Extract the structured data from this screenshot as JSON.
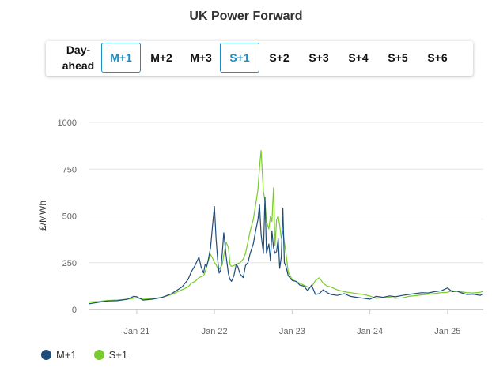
{
  "title": "UK Power Forward",
  "tabs": [
    {
      "label": "Day-ahead",
      "active": false
    },
    {
      "label": "M+1",
      "active": true
    },
    {
      "label": "M+2",
      "active": false
    },
    {
      "label": "M+3",
      "active": false
    },
    {
      "label": "S+1",
      "active": true
    },
    {
      "label": "S+2",
      "active": false
    },
    {
      "label": "S+3",
      "active": false
    },
    {
      "label": "S+4",
      "active": false
    },
    {
      "label": "S+5",
      "active": false
    },
    {
      "label": "S+6",
      "active": false
    }
  ],
  "colors": {
    "accent": "#1a8fc4",
    "m1": "#1e4d7b",
    "s1": "#77cc29",
    "grid": "#e6e6e6"
  },
  "chart_data": {
    "type": "line",
    "title": "UK Power Forward",
    "ylabel": "£/MWh",
    "xlabel": "",
    "ylim": [
      0,
      1000
    ],
    "yticks": [
      0,
      250,
      500,
      750,
      1000
    ],
    "xticks": [
      {
        "label": "Jan 21",
        "x": 2021.0
      },
      {
        "label": "Jan 22",
        "x": 2022.0
      },
      {
        "label": "Jan 23",
        "x": 2023.0
      },
      {
        "label": "Jan 24",
        "x": 2024.0
      },
      {
        "label": "Jan 25",
        "x": 2025.0
      }
    ],
    "xlim": [
      2020.38,
      2025.46
    ],
    "grid": true,
    "legend": "bottom-left",
    "series": [
      {
        "name": "M+1",
        "color": "#1e4d7b",
        "x": [
          2020.38,
          2020.5,
          2020.62,
          2020.75,
          2020.88,
          2020.96,
          2021.0,
          2021.08,
          2021.2,
          2021.33,
          2021.45,
          2021.58,
          2021.66,
          2021.7,
          2021.75,
          2021.8,
          2021.83,
          2021.86,
          2021.88,
          2021.9,
          2021.92,
          2021.95,
          2021.98,
          2022.0,
          2022.02,
          2022.04,
          2022.06,
          2022.08,
          2022.1,
          2022.12,
          2022.15,
          2022.18,
          2022.2,
          2022.22,
          2022.25,
          2022.28,
          2022.3,
          2022.33,
          2022.37,
          2022.4,
          2022.43,
          2022.46,
          2022.5,
          2022.53,
          2022.56,
          2022.58,
          2022.6,
          2022.63,
          2022.65,
          2022.67,
          2022.7,
          2022.72,
          2022.74,
          2022.76,
          2022.78,
          2022.8,
          2022.82,
          2022.84,
          2022.86,
          2022.88,
          2022.9,
          2022.92,
          2022.95,
          2023.0,
          2023.05,
          2023.1,
          2023.15,
          2023.2,
          2023.25,
          2023.3,
          2023.35,
          2023.4,
          2023.45,
          2023.5,
          2023.58,
          2023.67,
          2023.75,
          2023.83,
          2023.92,
          2024.0,
          2024.08,
          2024.17,
          2024.25,
          2024.33,
          2024.42,
          2024.5,
          2024.58,
          2024.67,
          2024.75,
          2024.83,
          2024.92,
          2025.0,
          2025.06,
          2025.12,
          2025.17,
          2025.25,
          2025.33,
          2025.42,
          2025.46
        ],
        "values": [
          30,
          38,
          45,
          47,
          55,
          70,
          68,
          50,
          55,
          65,
          85,
          120,
          160,
          200,
          235,
          280,
          225,
          195,
          240,
          230,
          265,
          330,
          470,
          550,
          385,
          270,
          195,
          210,
          300,
          410,
          285,
          190,
          160,
          150,
          180,
          240,
          230,
          190,
          170,
          235,
          250,
          300,
          350,
          420,
          480,
          560,
          400,
          300,
          600,
          300,
          350,
          260,
          420,
          330,
          300,
          310,
          380,
          220,
          280,
          540,
          250,
          230,
          180,
          155,
          150,
          130,
          125,
          100,
          130,
          80,
          85,
          105,
          90,
          80,
          75,
          85,
          70,
          65,
          60,
          55,
          70,
          65,
          72,
          68,
          75,
          80,
          85,
          90,
          88,
          95,
          100,
          115,
          95,
          98,
          90,
          80,
          82,
          75,
          85
        ]
      },
      {
        "name": "S+1",
        "color": "#77cc29",
        "x": [
          2020.38,
          2020.5,
          2020.62,
          2020.75,
          2020.88,
          2020.96,
          2021.0,
          2021.08,
          2021.2,
          2021.33,
          2021.45,
          2021.58,
          2021.66,
          2021.7,
          2021.75,
          2021.8,
          2021.83,
          2021.86,
          2021.88,
          2021.9,
          2021.92,
          2021.95,
          2021.98,
          2022.0,
          2022.02,
          2022.04,
          2022.06,
          2022.08,
          2022.1,
          2022.12,
          2022.15,
          2022.18,
          2022.2,
          2022.22,
          2022.25,
          2022.28,
          2022.3,
          2022.33,
          2022.37,
          2022.4,
          2022.43,
          2022.46,
          2022.5,
          2022.53,
          2022.56,
          2022.58,
          2022.6,
          2022.63,
          2022.65,
          2022.67,
          2022.7,
          2022.72,
          2022.74,
          2022.76,
          2022.78,
          2022.8,
          2022.82,
          2022.84,
          2022.86,
          2022.88,
          2022.9,
          2022.92,
          2022.95,
          2023.0,
          2023.05,
          2023.1,
          2023.15,
          2023.2,
          2023.25,
          2023.3,
          2023.35,
          2023.4,
          2023.45,
          2023.5,
          2023.58,
          2023.67,
          2023.75,
          2023.83,
          2023.92,
          2024.0,
          2024.08,
          2024.17,
          2024.25,
          2024.33,
          2024.42,
          2024.5,
          2024.58,
          2024.67,
          2024.75,
          2024.83,
          2024.92,
          2025.0,
          2025.06,
          2025.12,
          2025.17,
          2025.25,
          2025.33,
          2025.42,
          2025.46
        ],
        "values": [
          40,
          42,
          48,
          50,
          55,
          60,
          62,
          55,
          58,
          65,
          80,
          105,
          120,
          140,
          150,
          170,
          175,
          180,
          200,
          230,
          260,
          295,
          270,
          250,
          240,
          220,
          215,
          225,
          240,
          290,
          360,
          330,
          240,
          230,
          235,
          240,
          245,
          250,
          270,
          300,
          360,
          420,
          480,
          560,
          640,
          760,
          850,
          630,
          580,
          470,
          430,
          500,
          470,
          650,
          340,
          480,
          500,
          450,
          380,
          420,
          360,
          300,
          200,
          160,
          150,
          140,
          130,
          120,
          120,
          155,
          170,
          140,
          125,
          120,
          105,
          95,
          90,
          85,
          80,
          72,
          60,
          62,
          65,
          60,
          62,
          70,
          74,
          78,
          82,
          85,
          90,
          92,
          100,
          98,
          95,
          90,
          88,
          92,
          97
        ]
      }
    ]
  },
  "legend_items": [
    {
      "label": "M+1",
      "color": "#1e4d7b"
    },
    {
      "label": "S+1",
      "color": "#77cc29"
    }
  ]
}
